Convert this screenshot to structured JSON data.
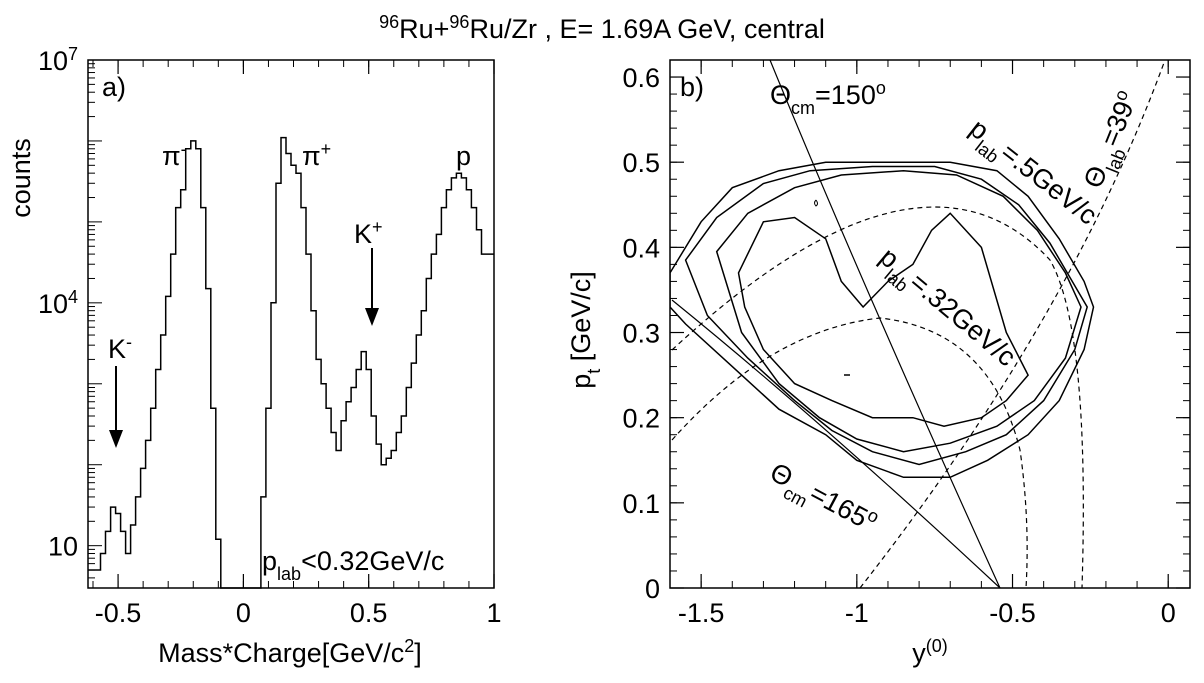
{
  "figure": {
    "title": {
      "pre1": "96",
      "t1": "Ru+",
      "pre2": "96",
      "t2": "Ru/Zr , E= 1.69A GeV,  central"
    }
  },
  "chart_data": [
    {
      "type": "line",
      "panel_label": "a)",
      "xlabel": {
        "main": "Mass*Charge[GeV/c",
        "sup": "2",
        "close": "]"
      },
      "ylabel": "counts",
      "xlim": [
        -0.62,
        1.0
      ],
      "ylim": [
        3,
        10000000
      ],
      "yscale": "log",
      "x_ticks": [
        -0.5,
        0,
        0.5,
        1
      ],
      "x_tick_labels": [
        "-0.5",
        "0",
        "0.5",
        "1"
      ],
      "y_tick_labels": [
        {
          "value": 10,
          "base": "10",
          "exp": ""
        },
        {
          "value": 10000,
          "base": "10",
          "exp": "4"
        },
        {
          "value": 10000000,
          "base": "10",
          "exp": "7"
        }
      ],
      "series": [
        {
          "x": [
            -0.62,
            -0.59,
            -0.57,
            -0.55,
            -0.53,
            -0.51,
            -0.49,
            -0.47,
            -0.45,
            -0.43,
            -0.41,
            -0.39,
            -0.37,
            -0.35,
            -0.33,
            -0.31,
            -0.29,
            -0.27,
            -0.25,
            -0.23,
            -0.21,
            -0.19,
            -0.17,
            -0.15,
            -0.13,
            -0.11,
            -0.09,
            -0.07,
            -0.05,
            -0.03,
            -0.01,
            0.01,
            0.03,
            0.05,
            0.07,
            0.09,
            0.11,
            0.13,
            0.15,
            0.17,
            0.19,
            0.21,
            0.23,
            0.25,
            0.27,
            0.29,
            0.31,
            0.33,
            0.35,
            0.37,
            0.39,
            0.41,
            0.43,
            0.45,
            0.47,
            0.49,
            0.51,
            0.53,
            0.55,
            0.57,
            0.59,
            0.61,
            0.63,
            0.65,
            0.67,
            0.69,
            0.71,
            0.73,
            0.75,
            0.77,
            0.79,
            0.81,
            0.83,
            0.85,
            0.87,
            0.89,
            0.91,
            0.93,
            0.95,
            0.97,
            0.99,
            1.0
          ],
          "y": [
            5,
            5,
            8,
            15,
            30,
            25,
            15,
            8,
            18,
            40,
            90,
            200,
            500,
            1500,
            4000,
            12000,
            40000,
            150000,
            250000,
            800000,
            1000000,
            800000,
            150000,
            15000,
            500,
            12,
            3,
            3,
            3,
            3,
            3,
            3,
            3,
            3,
            40,
            500,
            10000,
            300000,
            1100000,
            700000,
            500000,
            400000,
            150000,
            40000,
            8000,
            2000,
            1000,
            500,
            250,
            150,
            350,
            600,
            900,
            1500,
            2500,
            1500,
            400,
            180,
            100,
            120,
            150,
            250,
            400,
            900,
            1800,
            4000,
            8000,
            20000,
            40000,
            70000,
            150000,
            250000,
            350000,
            400000,
            350000,
            250000,
            150000,
            80000,
            40000,
            40000,
            40000,
            40000
          ]
        }
      ],
      "annotations": {
        "pi_minus": {
          "base": "π",
          "sup": "-"
        },
        "pi_plus": {
          "base": "π",
          "sup": "+"
        },
        "proton": "p",
        "k_plus": {
          "base": "K",
          "sup": "+"
        },
        "k_minus": {
          "base": "K",
          "sup": "-"
        },
        "cut": {
          "p": "p",
          "sub": "lab",
          "rest": "<0.32GeV/c"
        }
      }
    },
    {
      "type": "contour",
      "panel_label": "b)",
      "xlabel": {
        "base": "y",
        "sup": "(0)"
      },
      "ylabel": {
        "p": "p",
        "sub": "t",
        "rest": " [GeV/c]"
      },
      "xlim": [
        -1.6,
        0.07
      ],
      "ylim": [
        0,
        0.62
      ],
      "x_ticks": [
        -1.5,
        -1,
        -0.5,
        0
      ],
      "x_tick_labels": [
        "-1.5",
        "-1",
        "-0.5",
        "0"
      ],
      "y_ticks": [
        0,
        0.1,
        0.2,
        0.3,
        0.4,
        0.5,
        0.6
      ],
      "y_tick_labels": [
        "0",
        "0.1",
        "0.2",
        "0.3",
        "0.4",
        "0.5",
        "0.6"
      ],
      "contours": [
        {
          "points": [
            [
              -1.6,
              0.37
            ],
            [
              -1.5,
              0.43
            ],
            [
              -1.4,
              0.47
            ],
            [
              -1.25,
              0.49
            ],
            [
              -1.1,
              0.5
            ],
            [
              -0.9,
              0.5
            ],
            [
              -0.7,
              0.5
            ],
            [
              -0.55,
              0.49
            ],
            [
              -0.45,
              0.46
            ],
            [
              -0.35,
              0.41
            ],
            [
              -0.27,
              0.36
            ],
            [
              -0.24,
              0.33
            ],
            [
              -0.27,
              0.28
            ],
            [
              -0.35,
              0.22
            ],
            [
              -0.45,
              0.18
            ],
            [
              -0.58,
              0.15
            ],
            [
              -0.7,
              0.13
            ],
            [
              -0.85,
              0.13
            ],
            [
              -1.0,
              0.15
            ],
            [
              -1.1,
              0.18
            ],
            [
              -1.25,
              0.21
            ],
            [
              -1.4,
              0.26
            ],
            [
              -1.55,
              0.31
            ],
            [
              -1.6,
              0.33
            ]
          ]
        },
        {
          "points": [
            [
              -1.55,
              0.385
            ],
            [
              -1.45,
              0.435
            ],
            [
              -1.3,
              0.475
            ],
            [
              -1.15,
              0.49
            ],
            [
              -0.95,
              0.495
            ],
            [
              -0.75,
              0.495
            ],
            [
              -0.6,
              0.48
            ],
            [
              -0.48,
              0.45
            ],
            [
              -0.38,
              0.405
            ],
            [
              -0.3,
              0.355
            ],
            [
              -0.26,
              0.33
            ],
            [
              -0.3,
              0.28
            ],
            [
              -0.4,
              0.22
            ],
            [
              -0.52,
              0.18
            ],
            [
              -0.65,
              0.16
            ],
            [
              -0.8,
              0.145
            ],
            [
              -0.95,
              0.16
            ],
            [
              -1.08,
              0.185
            ],
            [
              -1.2,
              0.22
            ],
            [
              -1.35,
              0.27
            ],
            [
              -1.48,
              0.32
            ]
          ]
        },
        {
          "points": [
            [
              -1.45,
              0.395
            ],
            [
              -1.35,
              0.44
            ],
            [
              -1.2,
              0.47
            ],
            [
              -1.05,
              0.485
            ],
            [
              -0.85,
              0.49
            ],
            [
              -0.68,
              0.485
            ],
            [
              -0.53,
              0.46
            ],
            [
              -0.42,
              0.42
            ],
            [
              -0.33,
              0.37
            ],
            [
              -0.28,
              0.33
            ],
            [
              -0.33,
              0.27
            ],
            [
              -0.43,
              0.22
            ],
            [
              -0.55,
              0.19
            ],
            [
              -0.7,
              0.17
            ],
            [
              -0.85,
              0.16
            ],
            [
              -1.0,
              0.175
            ],
            [
              -1.12,
              0.2
            ],
            [
              -1.25,
              0.24
            ],
            [
              -1.37,
              0.3
            ]
          ]
        },
        {
          "points": [
            [
              -1.38,
              0.37
            ],
            [
              -1.3,
              0.43
            ],
            [
              -1.2,
              0.435
            ],
            [
              -1.1,
              0.41
            ],
            [
              -1.05,
              0.36
            ],
            [
              -0.98,
              0.33
            ],
            [
              -0.9,
              0.36
            ],
            [
              -0.82,
              0.38
            ],
            [
              -0.76,
              0.42
            ],
            [
              -0.7,
              0.44
            ],
            [
              -0.6,
              0.4
            ],
            [
              -0.52,
              0.3
            ],
            [
              -0.45,
              0.25
            ],
            [
              -0.52,
              0.22
            ],
            [
              -0.6,
              0.2
            ],
            [
              -0.72,
              0.19
            ],
            [
              -0.82,
              0.2
            ],
            [
              -0.95,
              0.2
            ],
            [
              -1.08,
              0.22
            ],
            [
              -1.2,
              0.24
            ],
            [
              -1.3,
              0.28
            ],
            [
              -1.36,
              0.33
            ]
          ]
        }
      ],
      "reference_curves": [
        {
          "name": "Θ_cm=150°",
          "style": "solid"
        },
        {
          "name": "Θ_cm=165°",
          "style": "solid"
        },
        {
          "name": "Θ_lab=39°",
          "style": "dashed"
        },
        {
          "name": "p_lab=.5GeV/c",
          "style": "dashed"
        },
        {
          "name": "p_lab=.32GeV/c",
          "style": "dashed"
        }
      ],
      "annotations": {
        "theta150": {
          "sym": "Θ",
          "sub": "cm",
          "rest": "=150",
          "sup": "o"
        },
        "theta165": {
          "sym": "Θ",
          "sub": "cm",
          "rest": "=165",
          "sup": "o"
        },
        "theta39": {
          "sym": "Θ",
          "sub": "lab",
          "rest": "=39",
          "sup": "o"
        },
        "plab05": {
          "p": "p",
          "sub": "lab",
          "rest": "=.5GeV/c"
        },
        "plab032": {
          "p": "p",
          "sub": "lab",
          "rest": "=.32GeV/c"
        }
      }
    }
  ]
}
